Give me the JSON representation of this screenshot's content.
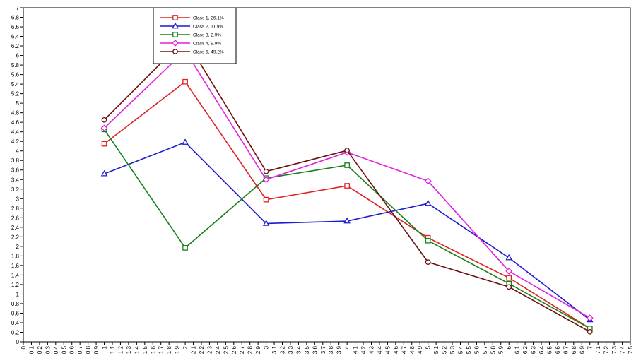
{
  "chart_data": {
    "type": "line",
    "x": [
      1,
      2,
      3,
      4,
      5,
      6,
      7
    ],
    "xlim": [
      0,
      7.5
    ],
    "ylim": [
      0,
      7
    ],
    "x_ticks": [
      "0",
      "0.1",
      "0.2",
      "0.3",
      "0.4",
      "0.5",
      "0.6",
      "0.7",
      "0.8",
      "0.9",
      "1",
      "1.1",
      "1.2",
      "1.3",
      "1.4",
      "1.5",
      "1.6",
      "1.7",
      "1.8",
      "1.9",
      "2",
      "2.1",
      "2.2",
      "2.3",
      "2.4",
      "2.5",
      "2.6",
      "2.7",
      "2.8",
      "2.9",
      "3",
      "3.1",
      "3.2",
      "3.3",
      "3.4",
      "3.5",
      "3.6",
      "3.7",
      "3.8",
      "3.9",
      "4",
      "4.1",
      "4.2",
      "4.3",
      "4.4",
      "4.5",
      "4.6",
      "4.7",
      "4.8",
      "4.9",
      "5",
      "5.1",
      "5.2",
      "5.3",
      "5.4",
      "5.5",
      "5.6",
      "5.7",
      "5.8",
      "5.9",
      "6",
      "6.1",
      "6.2",
      "6.3",
      "6.4",
      "6.5",
      "6.6",
      "6.7",
      "6.8",
      "6.9",
      "7",
      "7.1",
      "7.2",
      "7.3",
      "7.4",
      "7.5"
    ],
    "y_ticks": [
      "0",
      "0.2",
      "0.4",
      "0.6",
      "0.8",
      "1",
      "1.2",
      "1.4",
      "1.6",
      "1.8",
      "2",
      "2.2",
      "2.4",
      "2.6",
      "2.8",
      "3",
      "3.2",
      "3.4",
      "3.6",
      "3.8",
      "4",
      "4.2",
      "4.4",
      "4.6",
      "4.8",
      "5",
      "5.2",
      "5.4",
      "5.6",
      "5.8",
      "6",
      "6.2",
      "6.4",
      "6.6",
      "6.8",
      "7"
    ],
    "grid": false,
    "legend_position": "top-center",
    "series": [
      {
        "name": "Class 1, 26.1%",
        "color": "#e02020",
        "marker": "square",
        "values": [
          4.15,
          5.45,
          2.98,
          3.27,
          2.18,
          1.34,
          0.28
        ]
      },
      {
        "name": "Class 2, 11.9%",
        "color": "#1a1ad0",
        "marker": "triangle",
        "values": [
          3.52,
          4.18,
          2.48,
          2.53,
          2.9,
          1.76,
          0.46
        ]
      },
      {
        "name": "Class 3, 2.9%",
        "color": "#188018",
        "marker": "square",
        "values": [
          4.45,
          1.97,
          3.43,
          3.7,
          2.12,
          1.22,
          0.28
        ]
      },
      {
        "name": "Class 4, 9.9%",
        "color": "#e020e0",
        "marker": "diamond",
        "values": [
          4.48,
          6.1,
          3.4,
          3.97,
          3.37,
          1.48,
          0.5
        ]
      },
      {
        "name": "Class 5, 49.2%",
        "color": "#6b1010",
        "marker": "circle",
        "values": [
          4.65,
          6.35,
          3.57,
          4.01,
          1.67,
          1.15,
          0.21
        ]
      }
    ]
  }
}
